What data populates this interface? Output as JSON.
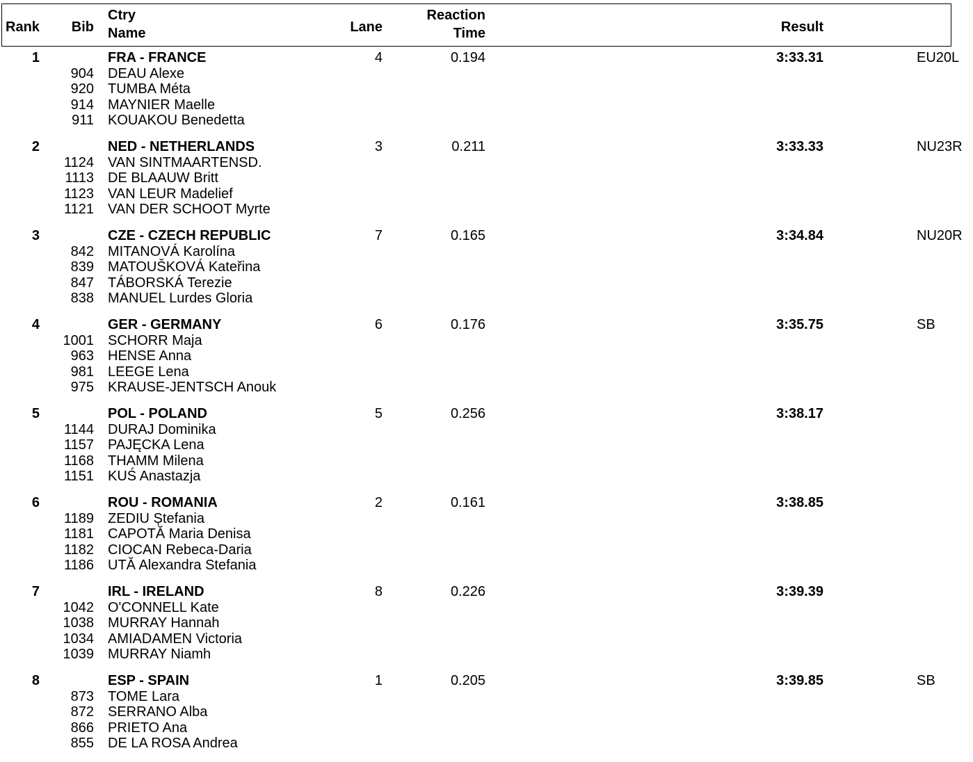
{
  "header": {
    "rank": "Rank",
    "bib": "Bib",
    "ctry": "Ctry",
    "name": "Name",
    "lane": "Lane",
    "reaction": "Reaction",
    "time": "Time",
    "result": "Result"
  },
  "teams": [
    {
      "rank": "1",
      "team": "FRA - FRANCE",
      "lane": "4",
      "reaction": "0.194",
      "result": "3:33.31",
      "record": "EU20L",
      "members": [
        {
          "bib": "904",
          "name": "DEAU Alexe"
        },
        {
          "bib": "920",
          "name": "TUMBA Méta"
        },
        {
          "bib": "914",
          "name": "MAYNIER Maelle"
        },
        {
          "bib": "911",
          "name": "KOUAKOU Benedetta"
        }
      ]
    },
    {
      "rank": "2",
      "team": "NED - NETHERLANDS",
      "lane": "3",
      "reaction": "0.211",
      "result": "3:33.33",
      "record": "NU23R",
      "members": [
        {
          "bib": "1124",
          "name": "VAN SINTMAARTENSD."
        },
        {
          "bib": "1113",
          "name": "DE BLAAUW Britt"
        },
        {
          "bib": "1123",
          "name": "VAN LEUR Madelief"
        },
        {
          "bib": "1121",
          "name": "VAN DER SCHOOT Myrte"
        }
      ]
    },
    {
      "rank": "3",
      "team": "CZE - CZECH REPUBLIC",
      "lane": "7",
      "reaction": "0.165",
      "result": "3:34.84",
      "record": "NU20R",
      "members": [
        {
          "bib": "842",
          "name": "MITANOVÁ Karolína"
        },
        {
          "bib": "839",
          "name": "MATOUŠKOVÁ Kateřina"
        },
        {
          "bib": "847",
          "name": "TÁBORSKÁ Terezie"
        },
        {
          "bib": "838",
          "name": "MANUEL Lurdes Gloria"
        }
      ]
    },
    {
      "rank": "4",
      "team": "GER - GERMANY",
      "lane": "6",
      "reaction": "0.176",
      "result": "3:35.75",
      "record": "SB",
      "members": [
        {
          "bib": "1001",
          "name": "SCHORR Maja"
        },
        {
          "bib": "963",
          "name": "HENSE Anna"
        },
        {
          "bib": "981",
          "name": "LEEGE Lena"
        },
        {
          "bib": "975",
          "name": "KRAUSE-JENTSCH Anouk"
        }
      ]
    },
    {
      "rank": "5",
      "team": "POL - POLAND",
      "lane": "5",
      "reaction": "0.256",
      "result": "3:38.17",
      "record": "",
      "members": [
        {
          "bib": "1144",
          "name": "DURAJ Dominika"
        },
        {
          "bib": "1157",
          "name": "PAJĘCKA Lena"
        },
        {
          "bib": "1168",
          "name": "THAMM Milena"
        },
        {
          "bib": "1151",
          "name": "KUŚ Anastazja"
        }
      ]
    },
    {
      "rank": "6",
      "team": "ROU - ROMANIA",
      "lane": "2",
      "reaction": "0.161",
      "result": "3:38.85",
      "record": "",
      "members": [
        {
          "bib": "1189",
          "name": "ZEDIU Ștefania"
        },
        {
          "bib": "1181",
          "name": "CAPOTĂ Maria Denisa"
        },
        {
          "bib": "1182",
          "name": "CIOCAN Rebeca-Daria"
        },
        {
          "bib": "1186",
          "name": "UTĂ Alexandra Stefania"
        }
      ]
    },
    {
      "rank": "7",
      "team": "IRL - IRELAND",
      "lane": "8",
      "reaction": "0.226",
      "result": "3:39.39",
      "record": "",
      "members": [
        {
          "bib": "1042",
          "name": "O'CONNELL Kate"
        },
        {
          "bib": "1038",
          "name": "MURRAY Hannah"
        },
        {
          "bib": "1034",
          "name": "AMIADAMEN Victoria"
        },
        {
          "bib": "1039",
          "name": "MURRAY Niamh"
        }
      ]
    },
    {
      "rank": "8",
      "team": "ESP - SPAIN",
      "lane": "1",
      "reaction": "0.205",
      "result": "3:39.85",
      "record": "SB",
      "members": [
        {
          "bib": "873",
          "name": "TOME Lara"
        },
        {
          "bib": "872",
          "name": "SERRANO Alba"
        },
        {
          "bib": "866",
          "name": "PRIETO Ana"
        },
        {
          "bib": "855",
          "name": "DE LA ROSA Andrea"
        }
      ]
    }
  ]
}
